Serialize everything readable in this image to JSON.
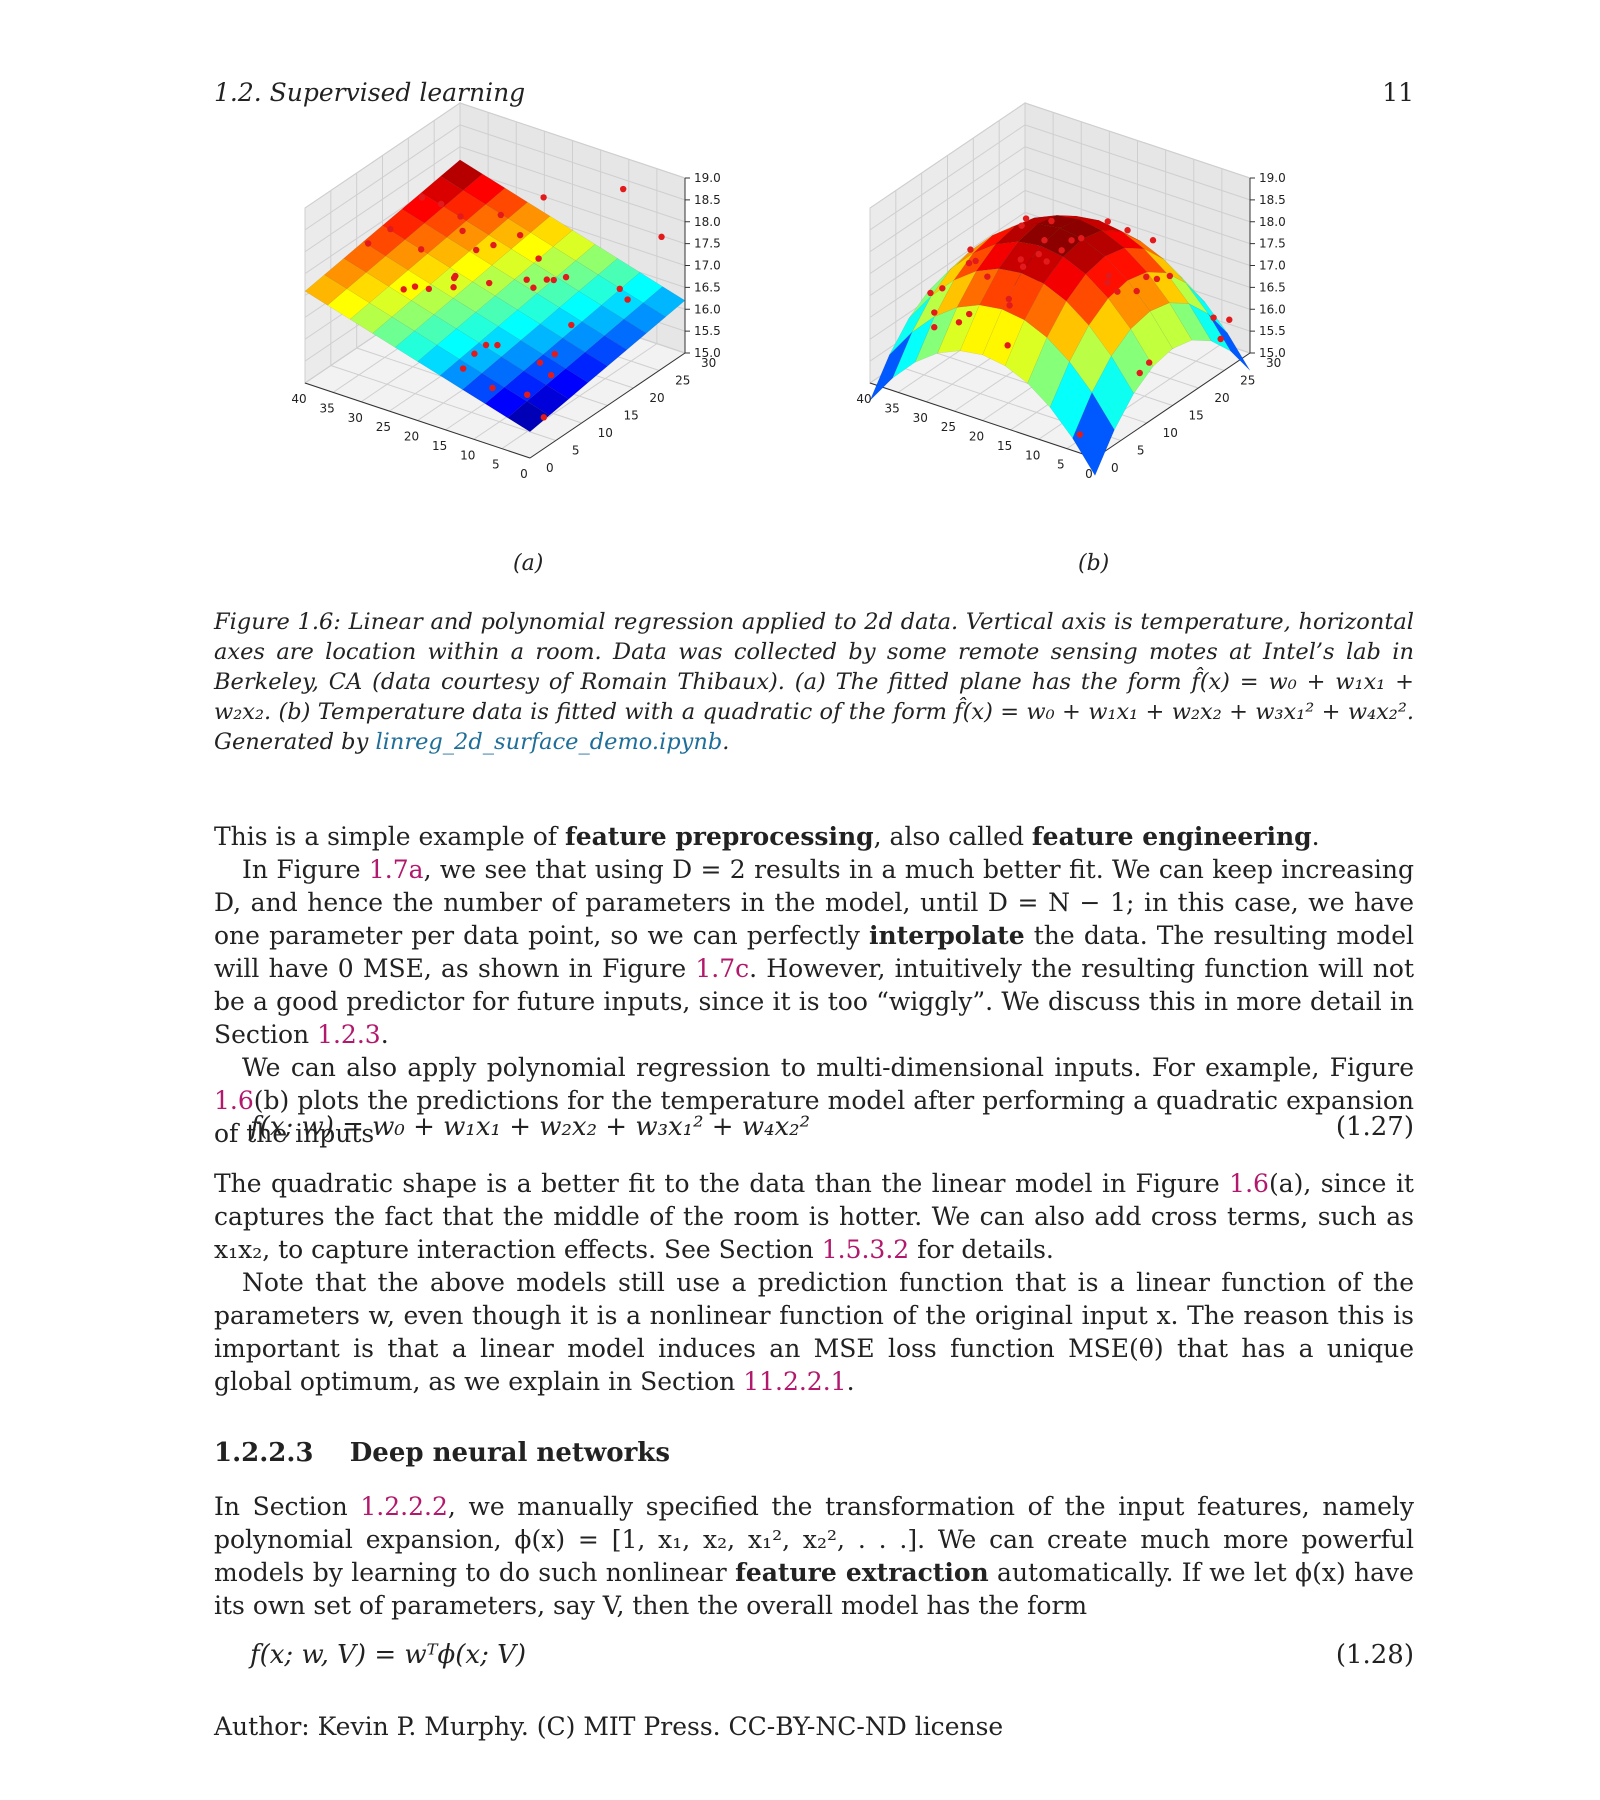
{
  "header": {
    "section": "1.2.   Supervised learning",
    "page_number": "11"
  },
  "figure": {
    "sublabels": [
      "(a)",
      "(b)"
    ],
    "caption": {
      "text_before_link": "Figure 1.6: Linear and polynomial regression applied to 2d data.  Vertical axis is temperature, horizontal axes are location within a room. Data was collected by some remote sensing motes at Intel’s lab in Berkeley, CA (data courtesy of Romain Thibaux). (a) The fitted plane has the form f̂(x) = w₀ + w₁x₁ + w₂x₂. (b) Temperature data is fitted with a quadratic of the form f̂(x) = w₀ + w₁x₁ + w₂x₂ + w₃x₁² + w₄x₂². Generated by ",
      "link": "linreg_2d_surface_demo.ipynb",
      "text_after_link": "."
    }
  },
  "chart_data": [
    {
      "type": "surface3d",
      "label": "(a)",
      "x_ticks": [
        "0",
        "5",
        "10",
        "15",
        "20",
        "25",
        "30",
        "35",
        "40"
      ],
      "y_ticks": [
        "0",
        "5",
        "10",
        "15",
        "20",
        "25",
        "30"
      ],
      "z_ticks": [
        "15.0",
        "15.5",
        "16.0",
        "16.5",
        "17.0",
        "17.5",
        "18.0",
        "18.5",
        "19.0"
      ],
      "xlim": [
        0,
        40
      ],
      "ylim": [
        0,
        30
      ],
      "zlim": [
        15.0,
        19.0
      ],
      "surface": "plane",
      "colormap": "jet",
      "points_color": "#e31a1c"
    },
    {
      "type": "surface3d",
      "label": "(b)",
      "x_ticks": [
        "0",
        "5",
        "10",
        "15",
        "20",
        "25",
        "30",
        "35",
        "40"
      ],
      "y_ticks": [
        "0",
        "5",
        "10",
        "15",
        "20",
        "25",
        "30"
      ],
      "z_ticks": [
        "15.0",
        "15.5",
        "16.0",
        "16.5",
        "17.0",
        "17.5",
        "18.0",
        "18.5",
        "19.0"
      ],
      "xlim": [
        0,
        40
      ],
      "ylim": [
        0,
        30
      ],
      "zlim": [
        15.0,
        19.0
      ],
      "surface": "quadratic",
      "colormap": "jet",
      "points_color": "#e31a1c"
    }
  ],
  "para1": {
    "a": "This is a simple example of ",
    "b1": "feature preprocessing",
    "c": ", also called ",
    "b2": "feature engineering",
    "d": "."
  },
  "para2": {
    "a": "In Figure ",
    "r1": "1.7a",
    "b": ", we see that using D = 2 results in a much better fit. We can keep increasing D, and hence the number of parameters in the model, until D = N − 1; in this case, we have one parameter per data point, so we can perfectly ",
    "bold": "interpolate",
    "c": " the data. The resulting model will have 0 MSE, as shown in Figure ",
    "r2": "1.7c",
    "d": ". However, intuitively the resulting function will not be a good predictor for future inputs, since it is too “wiggly”. We discuss this in more detail in Section ",
    "r3": "1.2.3",
    "e": "."
  },
  "para3": {
    "a": "We can also apply polynomial regression to multi-dimensional inputs. For example, Figure ",
    "r1": "1.6",
    "b": "(b) plots the predictions for the temperature model after performing a quadratic expansion of the inputs"
  },
  "eq127": {
    "text": "f(x; w) = w₀ + w₁x₁ + w₂x₂ + w₃x₁² + w₄x₂²",
    "num": "(1.27)"
  },
  "para4": {
    "a": "The quadratic shape is a better fit to the data than the linear model in Figure ",
    "r1": "1.6",
    "b": "(a), since it captures the fact that the middle of the room is hotter. We can also add cross terms, such as x₁x₂, to capture interaction effects. See Section ",
    "r2": "1.5.3.2",
    "c": " for details."
  },
  "para5": {
    "a": "Note that the above models still use a prediction function that is a linear function of the parameters w, even though it is a nonlinear function of the original input x. The reason this is important is that a linear model induces an MSE loss function MSE(θ) that has a unique global optimum, as we explain in Section ",
    "r1": "11.2.2.1",
    "b": "."
  },
  "section": {
    "number": "1.2.2.3",
    "title": "Deep neural networks"
  },
  "para6": {
    "a": "In Section ",
    "r1": "1.2.2.2",
    "b": ", we manually specified the transformation of the input features, namely polynomial expansion, ϕ(x) = [1, x₁, x₂, x₁², x₂², . . .]. We can create much more powerful models by learning to do such nonlinear ",
    "bold": "feature extraction",
    "c": " automatically. If we let ϕ(x) have its own set of parameters, say V, then the overall model has the form"
  },
  "eq128": {
    "text": "f(x; w, V) = wᵀϕ(x; V)",
    "num": "(1.28)"
  },
  "footer": {
    "text": "Author: Kevin P. Murphy. (C) MIT Press. CC-BY-NC-ND license"
  }
}
